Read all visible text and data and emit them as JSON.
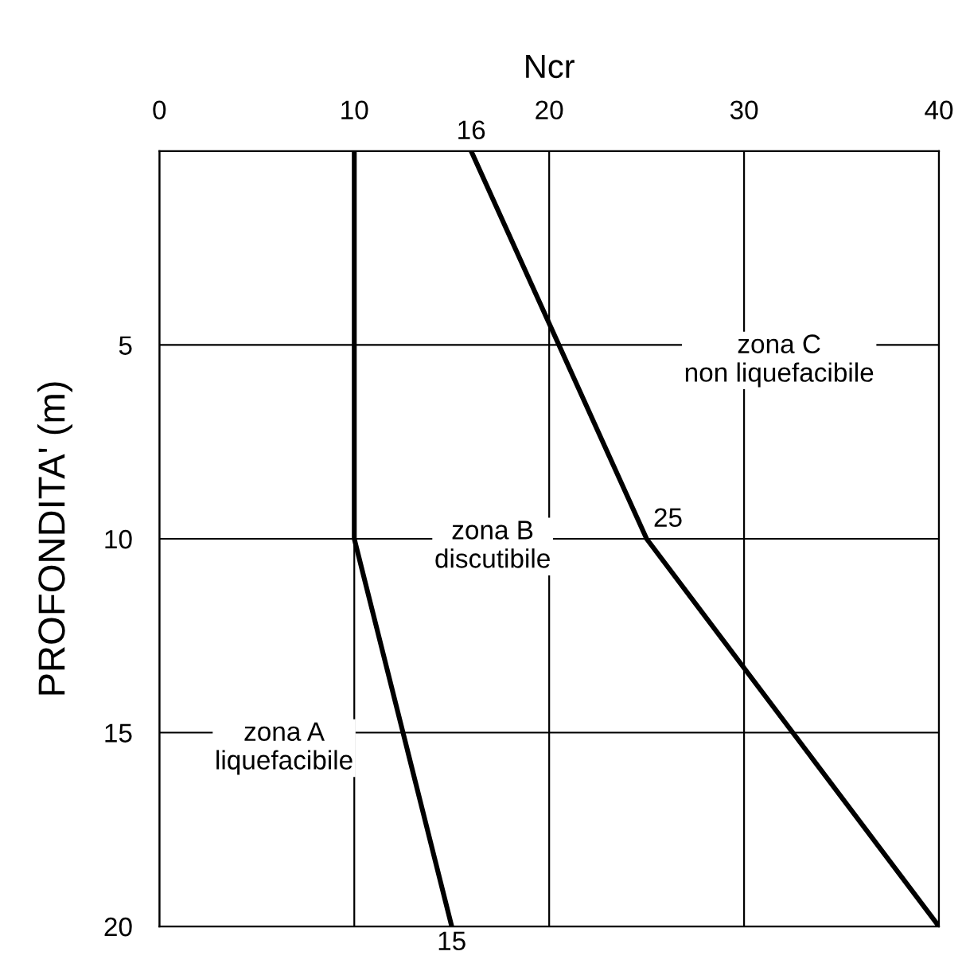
{
  "chart_data": {
    "type": "line",
    "xlabel": "Ncr",
    "ylabel": "PROFONDITA' (m)",
    "series": [
      {
        "color": "#000000",
        "x": [
          10,
          10,
          15
        ],
        "values": [
          0,
          10,
          20
        ]
      },
      {
        "color": "#000000",
        "x": [
          16,
          25,
          40
        ],
        "values": [
          0,
          10,
          20
        ]
      }
    ],
    "xlim": [
      0,
      40
    ],
    "xticks": [
      0,
      10,
      20,
      30,
      40
    ],
    "ylim": [
      20,
      0
    ],
    "yticks": [
      {
        "value": 0,
        "label": null
      },
      5,
      10,
      15,
      20
    ],
    "grid": true,
    "legend": false,
    "marker": "none",
    "line_style": "solid",
    "annotations": [
      {
        "text": "16",
        "x": 16,
        "y": 0
      },
      {
        "text": "25",
        "x": 25,
        "y": 10
      },
      {
        "text": "15",
        "x": 15,
        "y": 20
      },
      "zona C\nnon liquefacibile",
      "zona B\ndiscutibile",
      "zona A\nliquefacibile"
    ]
  }
}
